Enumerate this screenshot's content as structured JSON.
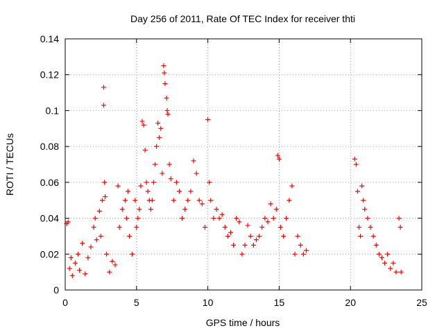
{
  "chart_data": {
    "type": "scatter",
    "title": "Day 256 of 2011, Rate Of TEC Index for receiver thti",
    "xlabel": "GPS time / hours",
    "ylabel": "ROTI / TECUs",
    "xlim": [
      0,
      25
    ],
    "ylim": [
      0,
      0.14
    ],
    "xticks": [
      "0",
      "5",
      "10",
      "15",
      "20",
      "25"
    ],
    "yticks": [
      "0",
      "0.02",
      "0.04",
      "0.06",
      "0.08",
      "0.1",
      "0.12",
      "0.14"
    ],
    "xtick_values": [
      0,
      5,
      10,
      15,
      20,
      25
    ],
    "ytick_values": [
      0,
      0.02,
      0.04,
      0.06,
      0.08,
      0.1,
      0.12,
      0.14
    ],
    "grid": true,
    "marker": "+",
    "series": [
      {
        "color": "#ff0000",
        "points": [
          [
            0.1,
            0.037
          ],
          [
            0.2,
            0.038
          ],
          [
            0.3,
            0.012
          ],
          [
            0.4,
            0.018
          ],
          [
            0.5,
            0.008
          ],
          [
            0.7,
            0.015
          ],
          [
            0.9,
            0.02
          ],
          [
            1.0,
            0.011
          ],
          [
            1.2,
            0.026
          ],
          [
            1.4,
            0.009
          ],
          [
            1.6,
            0.018
          ],
          [
            1.8,
            0.024
          ],
          [
            2.0,
            0.035
          ],
          [
            2.1,
            0.04
          ],
          [
            2.2,
            0.028
          ],
          [
            2.4,
            0.044
          ],
          [
            2.5,
            0.03
          ],
          [
            2.6,
            0.05
          ],
          [
            2.7,
            0.113
          ],
          [
            2.7,
            0.103
          ],
          [
            2.75,
            0.06
          ],
          [
            2.8,
            0.052
          ],
          [
            2.9,
            0.02
          ],
          [
            3.1,
            0.01
          ],
          [
            3.3,
            0.016
          ],
          [
            3.5,
            0.014
          ],
          [
            3.7,
            0.058
          ],
          [
            3.8,
            0.035
          ],
          [
            4.0,
            0.045
          ],
          [
            4.2,
            0.05
          ],
          [
            4.3,
            0.04
          ],
          [
            4.4,
            0.055
          ],
          [
            4.5,
            0.03
          ],
          [
            4.7,
            0.02
          ],
          [
            4.9,
            0.05
          ],
          [
            5.0,
            0.035
          ],
          [
            5.1,
            0.04
          ],
          [
            5.2,
            0.045
          ],
          [
            5.3,
            0.058
          ],
          [
            5.4,
            0.094
          ],
          [
            5.5,
            0.092
          ],
          [
            5.6,
            0.078
          ],
          [
            5.7,
            0.06
          ],
          [
            5.8,
            0.055
          ],
          [
            5.9,
            0.05
          ],
          [
            6.0,
            0.045
          ],
          [
            6.1,
            0.05
          ],
          [
            6.2,
            0.06
          ],
          [
            6.3,
            0.07
          ],
          [
            6.4,
            0.08
          ],
          [
            6.5,
            0.093
          ],
          [
            6.6,
            0.085
          ],
          [
            6.7,
            0.09
          ],
          [
            6.8,
            0.065
          ],
          [
            6.9,
            0.125
          ],
          [
            6.95,
            0.121
          ],
          [
            7.0,
            0.115
          ],
          [
            7.1,
            0.107
          ],
          [
            7.15,
            0.1
          ],
          [
            7.2,
            0.098
          ],
          [
            7.3,
            0.07
          ],
          [
            7.4,
            0.062
          ],
          [
            7.6,
            0.05
          ],
          [
            7.8,
            0.06
          ],
          [
            8.0,
            0.055
          ],
          [
            8.2,
            0.04
          ],
          [
            8.4,
            0.045
          ],
          [
            8.6,
            0.05
          ],
          [
            8.8,
            0.055
          ],
          [
            9.0,
            0.072
          ],
          [
            9.2,
            0.065
          ],
          [
            9.4,
            0.05
          ],
          [
            9.6,
            0.048
          ],
          [
            9.8,
            0.035
          ],
          [
            10.0,
            0.095
          ],
          [
            10.1,
            0.06
          ],
          [
            10.2,
            0.05
          ],
          [
            10.4,
            0.04
          ],
          [
            10.6,
            0.045
          ],
          [
            10.8,
            0.04
          ],
          [
            11.0,
            0.042
          ],
          [
            11.2,
            0.035
          ],
          [
            11.4,
            0.03
          ],
          [
            11.6,
            0.032
          ],
          [
            11.8,
            0.025
          ],
          [
            12.0,
            0.04
          ],
          [
            12.2,
            0.038
          ],
          [
            12.4,
            0.02
          ],
          [
            12.6,
            0.025
          ],
          [
            12.8,
            0.036
          ],
          [
            13.0,
            0.03
          ],
          [
            13.2,
            0.025
          ],
          [
            13.4,
            0.028
          ],
          [
            13.6,
            0.03
          ],
          [
            13.8,
            0.035
          ],
          [
            14.0,
            0.04
          ],
          [
            14.2,
            0.038
          ],
          [
            14.4,
            0.048
          ],
          [
            14.6,
            0.04
          ],
          [
            14.8,
            0.045
          ],
          [
            14.9,
            0.075
          ],
          [
            15.0,
            0.073
          ],
          [
            15.1,
            0.035
          ],
          [
            15.3,
            0.03
          ],
          [
            15.5,
            0.04
          ],
          [
            15.7,
            0.05
          ],
          [
            15.9,
            0.058
          ],
          [
            16.1,
            0.02
          ],
          [
            16.3,
            0.03
          ],
          [
            16.5,
            0.025
          ],
          [
            16.7,
            0.02
          ],
          [
            16.9,
            0.022
          ],
          [
            20.3,
            0.073
          ],
          [
            20.4,
            0.07
          ],
          [
            20.5,
            0.055
          ],
          [
            20.6,
            0.035
          ],
          [
            20.7,
            0.03
          ],
          [
            20.8,
            0.058
          ],
          [
            20.9,
            0.05
          ],
          [
            21.0,
            0.045
          ],
          [
            21.2,
            0.04
          ],
          [
            21.4,
            0.035
          ],
          [
            21.6,
            0.03
          ],
          [
            21.8,
            0.025
          ],
          [
            22.0,
            0.02
          ],
          [
            22.2,
            0.018
          ],
          [
            22.4,
            0.015
          ],
          [
            22.6,
            0.02
          ],
          [
            22.8,
            0.012
          ],
          [
            23.0,
            0.015
          ],
          [
            23.2,
            0.01
          ],
          [
            23.4,
            0.04
          ],
          [
            23.5,
            0.035
          ],
          [
            23.55,
            0.01
          ]
        ]
      }
    ]
  }
}
